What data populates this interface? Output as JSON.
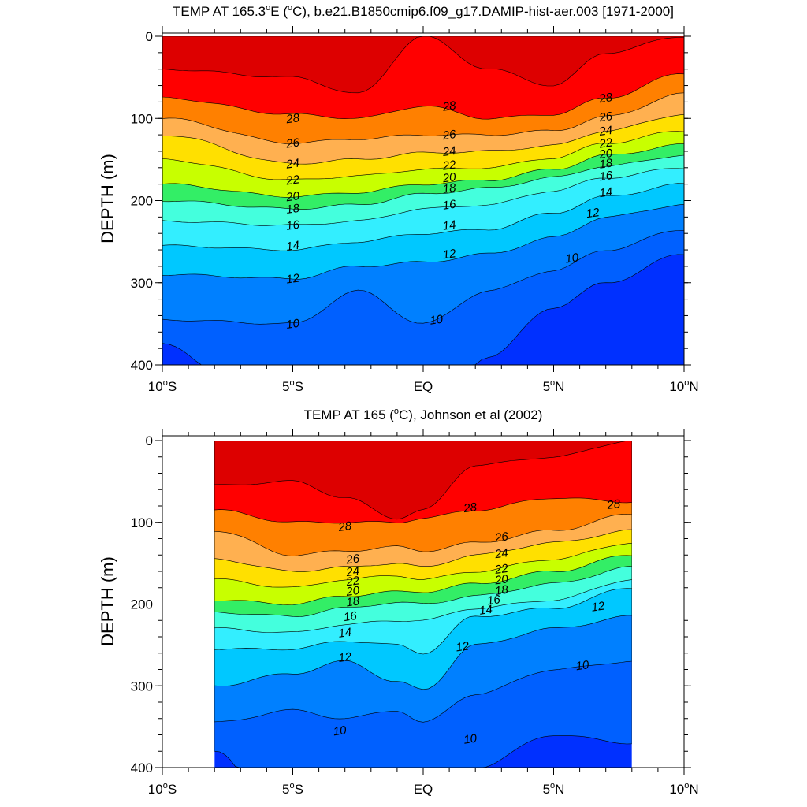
{
  "chart_data": [
    {
      "type": "heatmap",
      "subtype": "filled-contour",
      "title": "TEMP AT 165.3°E (°C), b.e21.B1850cmip6.f09_g17.DAMIP-hist-aer.003 [1971-2000]",
      "title_parts": {
        "pre": "TEMP AT 165.3",
        "sup1": "o",
        "mid1": "E (",
        "sup2": "o",
        "post": "C), b.e21.B1850cmip6.f09_g17.DAMIP-hist-aer.003 [1971-2000]"
      },
      "ylabel": "DEPTH (m)",
      "xlabel": "",
      "xlim": [
        -10,
        10
      ],
      "ylim": [
        0,
        400
      ],
      "y_inverted": true,
      "data_extent": [
        -10,
        10
      ],
      "x_ticks": [
        {
          "value": -10,
          "label": "10",
          "sup": "o",
          "suffix": "S"
        },
        {
          "value": -5,
          "label": "5",
          "sup": "o",
          "suffix": "S"
        },
        {
          "value": 0,
          "label": "EQ",
          "sup": "",
          "suffix": ""
        },
        {
          "value": 5,
          "label": "5",
          "sup": "o",
          "suffix": "N"
        },
        {
          "value": 10,
          "label": "10",
          "sup": "o",
          "suffix": "N"
        }
      ],
      "y_ticks": [
        0,
        100,
        200,
        300,
        400
      ],
      "columns": [
        {
          "x": -10,
          "levels": {
            "29": 40,
            "28": 75,
            "26": 100,
            "24": 120,
            "22": 150,
            "20": 180,
            "18": 200,
            "16": 225,
            "14": 255,
            "12": 290,
            "10": 345,
            "9": 375
          }
        },
        {
          "x": -5,
          "levels": {
            "29": 50,
            "28": 95,
            "26": 130,
            "24": 155,
            "22": 175,
            "20": 195,
            "18": 210,
            "16": 230,
            "14": 260,
            "12": 295,
            "10": 350,
            "9": 500
          }
        },
        {
          "x": -2.5,
          "levels": {
            "29": 70,
            "28": 100,
            "26": 125,
            "24": 150,
            "22": 170,
            "20": 190,
            "18": 205,
            "16": 225,
            "14": 250,
            "12": 280,
            "10": 310,
            "9": 500
          }
        },
        {
          "x": 0,
          "levels": {
            "29": 0,
            "28": 85,
            "26": 120,
            "24": 142,
            "22": 162,
            "20": 180,
            "18": 192,
            "16": 210,
            "14": 240,
            "12": 275,
            "10": 350,
            "9": 480
          }
        },
        {
          "x": 2.5,
          "levels": {
            "29": 40,
            "28": 100,
            "26": 120,
            "24": 140,
            "22": 160,
            "20": 175,
            "18": 185,
            "16": 205,
            "14": 235,
            "12": 265,
            "10": 310,
            "9": 390
          }
        },
        {
          "x": 5,
          "levels": {
            "29": 60,
            "28": 95,
            "26": 115,
            "24": 133,
            "22": 148,
            "20": 162,
            "18": 172,
            "16": 188,
            "14": 215,
            "12": 245,
            "10": 285,
            "9": 330,
            "8": 500
          }
        },
        {
          "x": 7,
          "levels": {
            "29": 20,
            "28": 75,
            "26": 98,
            "24": 115,
            "22": 130,
            "20": 145,
            "18": 158,
            "16": 172,
            "14": 195,
            "12": 220,
            "10": 260,
            "9": 300,
            "8": 410
          }
        },
        {
          "x": 10,
          "levels": {
            "29": 0,
            "28": 45,
            "26": 70,
            "24": 95,
            "22": 115,
            "20": 132,
            "18": 145,
            "16": 160,
            "14": 180,
            "12": 205,
            "10": 235,
            "9": 265,
            "8": 350
          }
        }
      ],
      "contour_labels": [
        {
          "text": "28",
          "x": -5,
          "y": 100
        },
        {
          "text": "26",
          "x": -5,
          "y": 130
        },
        {
          "text": "24",
          "x": -5,
          "y": 155
        },
        {
          "text": "22",
          "x": -5,
          "y": 175
        },
        {
          "text": "20",
          "x": -5,
          "y": 195
        },
        {
          "text": "18",
          "x": -5,
          "y": 210
        },
        {
          "text": "16",
          "x": -5,
          "y": 230
        },
        {
          "text": "14",
          "x": -5,
          "y": 255
        },
        {
          "text": "12",
          "x": -5,
          "y": 295
        },
        {
          "text": "10",
          "x": -5,
          "y": 350
        },
        {
          "text": "28",
          "x": 1,
          "y": 85
        },
        {
          "text": "26",
          "x": 1,
          "y": 120
        },
        {
          "text": "24",
          "x": 1,
          "y": 140
        },
        {
          "text": "22",
          "x": 1,
          "y": 157
        },
        {
          "text": "20",
          "x": 1,
          "y": 172
        },
        {
          "text": "18",
          "x": 1,
          "y": 185
        },
        {
          "text": "16",
          "x": 1,
          "y": 205
        },
        {
          "text": "14",
          "x": 1,
          "y": 230
        },
        {
          "text": "12",
          "x": 1,
          "y": 265
        },
        {
          "text": "10",
          "x": 0.5,
          "y": 345
        },
        {
          "text": "28",
          "x": 7,
          "y": 75
        },
        {
          "text": "26",
          "x": 7,
          "y": 98
        },
        {
          "text": "24",
          "x": 7,
          "y": 115
        },
        {
          "text": "22",
          "x": 7,
          "y": 130
        },
        {
          "text": "20",
          "x": 7,
          "y": 143
        },
        {
          "text": "18",
          "x": 7,
          "y": 155
        },
        {
          "text": "16",
          "x": 7,
          "y": 170
        },
        {
          "text": "14",
          "x": 7,
          "y": 190
        },
        {
          "text": "12",
          "x": 6.5,
          "y": 215
        },
        {
          "text": "10",
          "x": 5.7,
          "y": 270
        }
      ]
    },
    {
      "type": "heatmap",
      "subtype": "filled-contour",
      "title": "TEMP AT 165 (°C), Johnson et al (2002)",
      "title_parts": {
        "pre": "TEMP AT 165 (",
        "sup1": "o",
        "mid1": "C), Johnson et al (2002)",
        "sup2": "",
        "post": ""
      },
      "ylabel": "DEPTH (m)",
      "xlabel": "",
      "xlim": [
        -10,
        10
      ],
      "ylim": [
        0,
        400
      ],
      "y_inverted": true,
      "data_extent": [
        -8,
        8
      ],
      "x_ticks": [
        {
          "value": -10,
          "label": "10",
          "sup": "o",
          "suffix": "S"
        },
        {
          "value": -5,
          "label": "5",
          "sup": "o",
          "suffix": "S"
        },
        {
          "value": 0,
          "label": "EQ",
          "sup": "",
          "suffix": ""
        },
        {
          "value": 5,
          "label": "5",
          "sup": "o",
          "suffix": "N"
        },
        {
          "value": 10,
          "label": "10",
          "sup": "o",
          "suffix": "N"
        }
      ],
      "y_ticks": [
        0,
        100,
        200,
        300,
        400
      ],
      "columns": [
        {
          "x": -8,
          "levels": {
            "29": 55,
            "28": 85,
            "26": 110,
            "24": 145,
            "22": 170,
            "20": 195,
            "18": 210,
            "16": 230,
            "14": 255,
            "12": 300,
            "10": 345,
            "9": 380
          }
        },
        {
          "x": -5,
          "levels": {
            "29": 50,
            "28": 100,
            "26": 140,
            "24": 160,
            "22": 180,
            "20": 200,
            "18": 215,
            "16": 235,
            "14": 255,
            "12": 285,
            "10": 330,
            "9": 500
          }
        },
        {
          "x": -3,
          "levels": {
            "29": 70,
            "28": 100,
            "26": 135,
            "24": 155,
            "22": 170,
            "20": 190,
            "18": 205,
            "16": 225,
            "14": 245,
            "12": 270,
            "10": 340,
            "9": 500
          }
        },
        {
          "x": -1,
          "levels": {
            "29": 95,
            "28": 100,
            "26": 130,
            "24": 150,
            "22": 165,
            "20": 185,
            "18": 198,
            "16": 220,
            "14": 250,
            "12": 295,
            "10": 330,
            "9": 500
          }
        },
        {
          "x": 0,
          "levels": {
            "29": 85,
            "28": 95,
            "26": 135,
            "24": 155,
            "22": 170,
            "20": 185,
            "18": 200,
            "16": 220,
            "14": 260,
            "12": 305,
            "10": 345,
            "9": 500
          }
        },
        {
          "x": 2,
          "levels": {
            "29": 30,
            "28": 85,
            "26": 125,
            "24": 140,
            "22": 160,
            "20": 175,
            "18": 190,
            "16": 205,
            "14": 215,
            "12": 250,
            "10": 310,
            "9": 400
          }
        },
        {
          "x": 5,
          "levels": {
            "29": 20,
            "28": 70,
            "26": 110,
            "24": 125,
            "22": 145,
            "20": 160,
            "18": 175,
            "16": 195,
            "14": 205,
            "12": 230,
            "10": 280,
            "9": 360
          }
        },
        {
          "x": 8,
          "levels": {
            "29": 0,
            "28": 75,
            "26": 90,
            "24": 110,
            "22": 125,
            "20": 140,
            "18": 155,
            "16": 170,
            "14": 180,
            "12": 215,
            "10": 270,
            "9": 370
          }
        }
      ],
      "contour_labels": [
        {
          "text": "28",
          "x": -3,
          "y": 105
        },
        {
          "text": "26",
          "x": -2.7,
          "y": 145
        },
        {
          "text": "24",
          "x": -2.7,
          "y": 160
        },
        {
          "text": "22",
          "x": -2.7,
          "y": 172
        },
        {
          "text": "20",
          "x": -2.7,
          "y": 184
        },
        {
          "text": "18",
          "x": -2.7,
          "y": 197
        },
        {
          "text": "16",
          "x": -2.8,
          "y": 215
        },
        {
          "text": "14",
          "x": -3,
          "y": 235
        },
        {
          "text": "12",
          "x": -3,
          "y": 265
        },
        {
          "text": "10",
          "x": -3.2,
          "y": 355
        },
        {
          "text": "28",
          "x": 1.8,
          "y": 82
        },
        {
          "text": "26",
          "x": 3,
          "y": 118
        },
        {
          "text": "24",
          "x": 3,
          "y": 138
        },
        {
          "text": "22",
          "x": 3,
          "y": 157
        },
        {
          "text": "20",
          "x": 3,
          "y": 170
        },
        {
          "text": "18",
          "x": 3,
          "y": 183
        },
        {
          "text": "16",
          "x": 2.7,
          "y": 195
        },
        {
          "text": "14",
          "x": 2.4,
          "y": 207
        },
        {
          "text": "12",
          "x": 1.5,
          "y": 252
        },
        {
          "text": "10",
          "x": 1.8,
          "y": 365
        },
        {
          "text": "28",
          "x": 7.3,
          "y": 78
        },
        {
          "text": "12",
          "x": 6.7,
          "y": 203
        },
        {
          "text": "10",
          "x": 6.1,
          "y": 275
        }
      ]
    }
  ],
  "colors": {
    "levels": [
      {
        "t": 29,
        "c": "#dd0000"
      },
      {
        "t": 28,
        "c": "#ff0000"
      },
      {
        "t": 27,
        "c": "#ff4000"
      },
      {
        "t": 26,
        "c": "#ff8000"
      },
      {
        "t": 25,
        "c": "#ff9c33"
      },
      {
        "t": 24,
        "c": "#ffb050"
      },
      {
        "t": 23,
        "c": "#ffcc44"
      },
      {
        "t": 22,
        "c": "#ffe000"
      },
      {
        "t": 21,
        "c": "#ffff00"
      },
      {
        "t": 20,
        "c": "#c8ff00"
      },
      {
        "t": 19,
        "c": "#00e000"
      },
      {
        "t": 18,
        "c": "#33ee66"
      },
      {
        "t": 17,
        "c": "#00f0c0"
      },
      {
        "t": 16,
        "c": "#44ffdd"
      },
      {
        "t": 15,
        "c": "#00ffff"
      },
      {
        "t": 14,
        "c": "#33eeff"
      },
      {
        "t": 13,
        "c": "#00e0ff"
      },
      {
        "t": 12,
        "c": "#00c8ff"
      },
      {
        "t": 11,
        "c": "#1aa8ff"
      },
      {
        "t": 10,
        "c": "#0080ff"
      },
      {
        "t": 9,
        "c": "#0060ff"
      },
      {
        "t": 8,
        "c": "#0030ff"
      },
      {
        "t": 7,
        "c": "#5a10d8"
      }
    ]
  }
}
